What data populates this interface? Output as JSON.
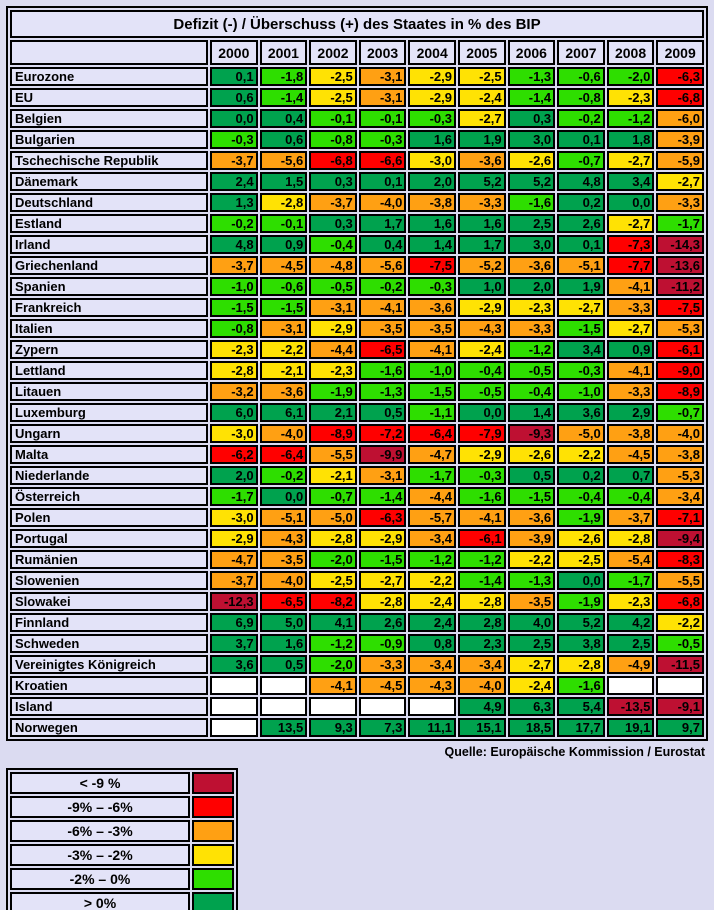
{
  "title": "Defizit (-) / Überschuss (+) des Staates in % des BIP",
  "source": "Quelle: Europäische Kommission / Eurostat",
  "colors": {
    "darkred": "#BE1032",
    "red": "#FF0000",
    "orange": "#FFA013",
    "yellow": "#FFE204",
    "lightgreen": "#2EDE00",
    "darkgreen": "#00A24E",
    "blank": "#FFFFFF"
  },
  "thresholds": [
    [
      0,
      "darkgreen"
    ],
    [
      -2,
      "lightgreen"
    ],
    [
      -3,
      "yellow"
    ],
    [
      -6,
      "orange"
    ],
    [
      -9,
      "red"
    ]
  ],
  "fallback_color": "darkred",
  "chart_data": {
    "type": "heatmap",
    "title": "Defizit (-) / Überschuss (+) des Staates in % des BIP",
    "unit": "% des BIP",
    "value_format": "comma-decimal, one fraction digit",
    "legend_position": "bottom-left",
    "columns": [
      "2000",
      "2001",
      "2002",
      "2003",
      "2004",
      "2005",
      "2006",
      "2007",
      "2008",
      "2009"
    ],
    "rows": [
      {
        "name": "Eurozone",
        "values": [
          0.1,
          -1.8,
          -2.5,
          -3.1,
          -2.9,
          -2.5,
          -1.3,
          -0.6,
          -2.0,
          -6.3
        ]
      },
      {
        "name": "EU",
        "values": [
          0.6,
          -1.4,
          -2.5,
          -3.1,
          -2.9,
          -2.4,
          -1.4,
          -0.8,
          -2.3,
          -6.8
        ]
      },
      {
        "name": "Belgien",
        "values": [
          0.0,
          0.4,
          -0.1,
          -0.1,
          -0.3,
          -2.7,
          0.3,
          -0.2,
          -1.2,
          -6.0
        ]
      },
      {
        "name": "Bulgarien",
        "values": [
          -0.3,
          0.6,
          -0.8,
          -0.3,
          1.6,
          1.9,
          3.0,
          0.1,
          1.8,
          -3.9
        ]
      },
      {
        "name": "Tschechische Republik",
        "values": [
          -3.7,
          -5.6,
          -6.8,
          -6.6,
          -3.0,
          -3.6,
          -2.6,
          -0.7,
          -2.7,
          -5.9
        ]
      },
      {
        "name": "Dänemark",
        "values": [
          2.4,
          1.5,
          0.3,
          0.1,
          2.0,
          5.2,
          5.2,
          4.8,
          3.4,
          -2.7
        ]
      },
      {
        "name": "Deutschland",
        "values": [
          1.3,
          -2.8,
          -3.7,
          -4.0,
          -3.8,
          -3.3,
          -1.6,
          0.2,
          0.0,
          -3.3
        ]
      },
      {
        "name": "Estland",
        "values": [
          -0.2,
          -0.1,
          0.3,
          1.7,
          1.6,
          1.6,
          2.5,
          2.6,
          -2.7,
          -1.7
        ]
      },
      {
        "name": "Irland",
        "values": [
          4.8,
          0.9,
          -0.4,
          0.4,
          1.4,
          1.7,
          3.0,
          0.1,
          -7.3,
          -14.3
        ]
      },
      {
        "name": "Griechenland",
        "values": [
          -3.7,
          -4.5,
          -4.8,
          -5.6,
          -7.5,
          -5.2,
          -3.6,
          -5.1,
          -7.7,
          -13.6
        ]
      },
      {
        "name": "Spanien",
        "values": [
          -1.0,
          -0.6,
          -0.5,
          -0.2,
          -0.3,
          1.0,
          2.0,
          1.9,
          -4.1,
          -11.2
        ]
      },
      {
        "name": "Frankreich",
        "values": [
          -1.5,
          -1.5,
          -3.1,
          -4.1,
          -3.6,
          -2.9,
          -2.3,
          -2.7,
          -3.3,
          -7.5
        ]
      },
      {
        "name": "Italien",
        "values": [
          -0.8,
          -3.1,
          -2.9,
          -3.5,
          -3.5,
          -4.3,
          -3.3,
          -1.5,
          -2.7,
          -5.3
        ]
      },
      {
        "name": "Zypern",
        "values": [
          -2.3,
          -2.2,
          -4.4,
          -6.5,
          -4.1,
          -2.4,
          -1.2,
          3.4,
          0.9,
          -6.1
        ]
      },
      {
        "name": "Lettland",
        "values": [
          -2.8,
          -2.1,
          -2.3,
          -1.6,
          -1.0,
          -0.4,
          -0.5,
          -0.3,
          -4.1,
          -9.0
        ]
      },
      {
        "name": "Litauen",
        "values": [
          -3.2,
          -3.6,
          -1.9,
          -1.3,
          -1.5,
          -0.5,
          -0.4,
          -1.0,
          -3.3,
          -8.9
        ]
      },
      {
        "name": "Luxemburg",
        "values": [
          6.0,
          6.1,
          2.1,
          0.5,
          -1.1,
          0.0,
          1.4,
          3.6,
          2.9,
          -0.7
        ]
      },
      {
        "name": "Ungarn",
        "values": [
          -3.0,
          -4.0,
          -8.9,
          -7.2,
          -6.4,
          -7.9,
          -9.3,
          -5.0,
          -3.8,
          -4.0
        ]
      },
      {
        "name": "Malta",
        "values": [
          -6.2,
          -6.4,
          -5.5,
          -9.9,
          -4.7,
          -2.9,
          -2.6,
          -2.2,
          -4.5,
          -3.8
        ]
      },
      {
        "name": "Niederlande",
        "values": [
          2.0,
          -0.2,
          -2.1,
          -3.1,
          -1.7,
          -0.3,
          0.5,
          0.2,
          0.7,
          -5.3
        ]
      },
      {
        "name": "Österreich",
        "values": [
          -1.7,
          0.0,
          -0.7,
          -1.4,
          -4.4,
          -1.6,
          -1.5,
          -0.4,
          -0.4,
          -3.4
        ]
      },
      {
        "name": "Polen",
        "values": [
          -3.0,
          -5.1,
          -5.0,
          -6.3,
          -5.7,
          -4.1,
          -3.6,
          -1.9,
          -3.7,
          -7.1
        ]
      },
      {
        "name": "Portugal",
        "values": [
          -2.9,
          -4.3,
          -2.8,
          -2.9,
          -3.4,
          -6.1,
          -3.9,
          -2.6,
          -2.8,
          -9.4
        ]
      },
      {
        "name": "Rumänien",
        "values": [
          -4.7,
          -3.5,
          -2.0,
          -1.5,
          -1.2,
          -1.2,
          -2.2,
          -2.5,
          -5.4,
          -8.3
        ]
      },
      {
        "name": "Slowenien",
        "values": [
          -3.7,
          -4.0,
          -2.5,
          -2.7,
          -2.2,
          -1.4,
          -1.3,
          0.0,
          -1.7,
          -5.5
        ]
      },
      {
        "name": "Slowakei",
        "values": [
          -12.3,
          -6.5,
          -8.2,
          -2.8,
          -2.4,
          -2.8,
          -3.5,
          -1.9,
          -2.3,
          -6.8
        ]
      },
      {
        "name": "Finnland",
        "values": [
          6.9,
          5.0,
          4.1,
          2.6,
          2.4,
          2.8,
          4.0,
          5.2,
          4.2,
          -2.2
        ]
      },
      {
        "name": "Schweden",
        "values": [
          3.7,
          1.6,
          -1.2,
          -0.9,
          0.8,
          2.3,
          2.5,
          3.8,
          2.5,
          -0.5
        ]
      },
      {
        "name": "Vereinigtes Königreich",
        "values": [
          3.6,
          0.5,
          -2.0,
          -3.3,
          -3.4,
          -3.4,
          -2.7,
          -2.8,
          -4.9,
          -11.5
        ]
      },
      {
        "name": "Kroatien",
        "values": [
          null,
          null,
          -4.1,
          -4.5,
          -4.3,
          -4.0,
          -2.4,
          -1.6,
          null,
          null
        ]
      },
      {
        "name": "Island",
        "values": [
          null,
          null,
          null,
          null,
          null,
          4.9,
          6.3,
          5.4,
          -13.5,
          -9.1
        ]
      },
      {
        "name": "Norwegen",
        "values": [
          null,
          13.5,
          9.3,
          7.3,
          11.1,
          15.1,
          18.5,
          17.7,
          19.1,
          9.7
        ]
      }
    ],
    "legend": [
      {
        "label": "< -9 %",
        "color_key": "darkred"
      },
      {
        "label": "-9% – -6%",
        "color_key": "red"
      },
      {
        "label": "-6% – -3%",
        "color_key": "orange"
      },
      {
        "label": "-3% – -2%",
        "color_key": "yellow"
      },
      {
        "label": "-2% – 0%",
        "color_key": "lightgreen"
      },
      {
        "label": "> 0%",
        "color_key": "darkgreen"
      }
    ]
  }
}
